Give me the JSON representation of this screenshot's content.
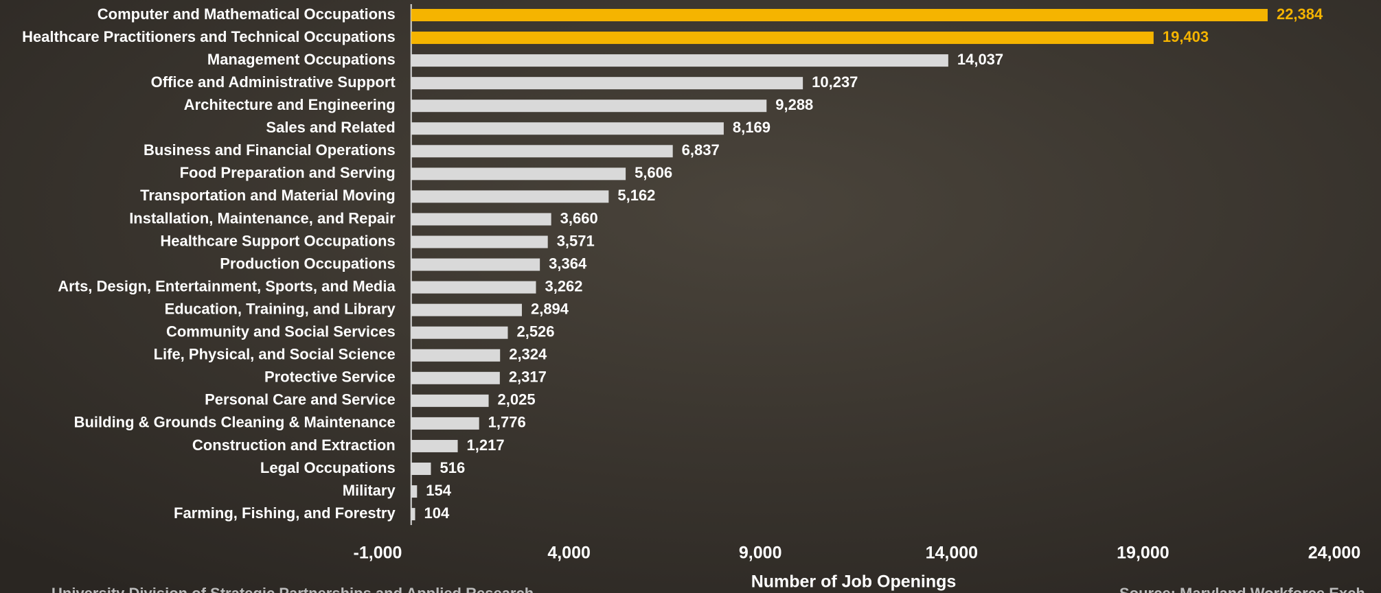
{
  "chart_data": {
    "type": "barh",
    "categories": [
      "Computer and Mathematical Occupations",
      "Healthcare Practitioners and Technical Occupations",
      "Management Occupations",
      "Office and Administrative Support",
      "Architecture and Engineering",
      "Sales and Related",
      "Business and Financial Operations",
      "Food Preparation and Serving",
      "Transportation and Material Moving",
      "Installation, Maintenance, and Repair",
      "Healthcare Support Occupations",
      "Production Occupations",
      "Arts, Design, Entertainment, Sports, and Media",
      "Education, Training, and Library",
      "Community and Social Services",
      "Life, Physical, and Social Science",
      "Protective Service",
      "Personal Care and Service",
      "Building & Grounds Cleaning & Maintenance",
      "Construction and Extraction",
      "Legal Occupations",
      "Military",
      "Farming, Fishing, and Forestry"
    ],
    "values": [
      22384,
      19403,
      14037,
      10237,
      9288,
      8169,
      6837,
      5606,
      5162,
      3660,
      3571,
      3364,
      3262,
      2894,
      2526,
      2324,
      2317,
      2025,
      1776,
      1217,
      516,
      154,
      104
    ],
    "value_labels": [
      "22,384",
      "19,403",
      "14,037",
      "10,237",
      "9,288",
      "8,169",
      "6,837",
      "5,606",
      "5,162",
      "3,660",
      "3,571",
      "3,364",
      "3,262",
      "2,894",
      "2,526",
      "2,324",
      "2,317",
      "2,025",
      "1,776",
      "1,217",
      "516",
      "154",
      "104"
    ],
    "color": "#d9d9d9",
    "colors": [
      "#f5b400",
      "#f5b400",
      "#d9d9d9",
      "#d9d9d9",
      "#d9d9d9",
      "#d9d9d9",
      "#d9d9d9",
      "#d9d9d9",
      "#d9d9d9",
      "#d9d9d9",
      "#d9d9d9",
      "#d9d9d9",
      "#d9d9d9",
      "#d9d9d9",
      "#d9d9d9",
      "#d9d9d9",
      "#d9d9d9",
      "#d9d9d9",
      "#d9d9d9",
      "#d9d9d9",
      "#d9d9d9",
      "#d9d9d9",
      "#d9d9d9"
    ],
    "xlim": [
      -1000,
      24000
    ],
    "xticks": [
      {
        "value": -1000,
        "label": "-1,000"
      },
      {
        "value": 4000,
        "label": "4,000"
      },
      {
        "value": 9000,
        "label": "9,000"
      },
      {
        "value": 14000,
        "label": "14,000"
      },
      {
        "value": 19000,
        "label": "19,000"
      },
      {
        "value": 24000,
        "label": "24,000"
      }
    ],
    "x_label": "Number of Job Openings",
    "footnote_left": "University Division of Strategic Partnerships and Applied Research",
    "footnote_right": "Source: Maryland Workforce Exch"
  }
}
